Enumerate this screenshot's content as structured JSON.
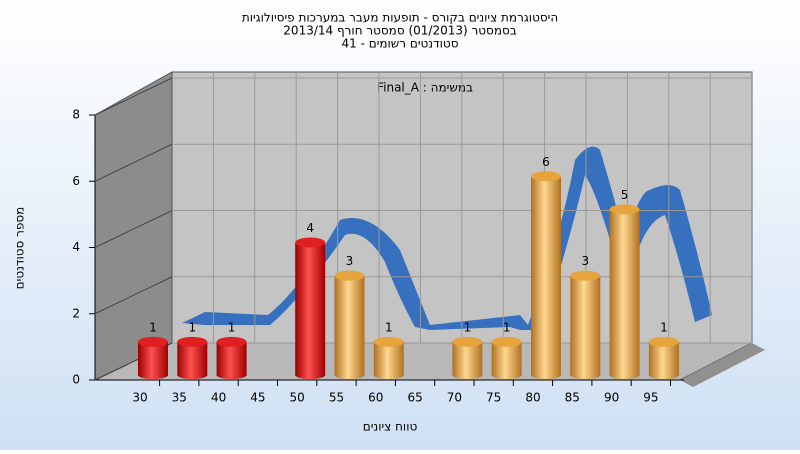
{
  "chart_data": {
    "type": "bar",
    "title": "היסטוגרמת ציונים בקורס - תופעות מעבר במערכות פיסיולוגיות",
    "subtitle": [
      "בסמסטר  (01/2013)  סמסטר חורף  2013/14",
      "סטודנטים רשומים - 41"
    ],
    "annotation": "Final_A : במשימה",
    "x_label": "טווח ציונים",
    "y_label": "מספר סטודנטים",
    "categories": [
      "30",
      "35",
      "40",
      "45",
      "50",
      "55",
      "60",
      "65",
      "70",
      "75",
      "80",
      "85",
      "90",
      "95"
    ],
    "values": [
      1,
      1,
      1,
      null,
      4,
      3,
      1,
      null,
      1,
      1,
      6,
      3,
      5,
      1
    ],
    "colors": [
      "#e02020",
      "#e02020",
      "#e02020",
      "#e02020",
      "#e02020",
      "#e8a43c",
      "#e8a43c",
      "#e8a43c",
      "#e8a43c",
      "#e8a43c",
      "#e8a43c",
      "#e8a43c",
      "#e8a43c",
      "#e8a43c"
    ],
    "ylim": [
      0,
      8
    ],
    "yticks": [
      0,
      2,
      4,
      6,
      8
    ],
    "grid": true
  }
}
